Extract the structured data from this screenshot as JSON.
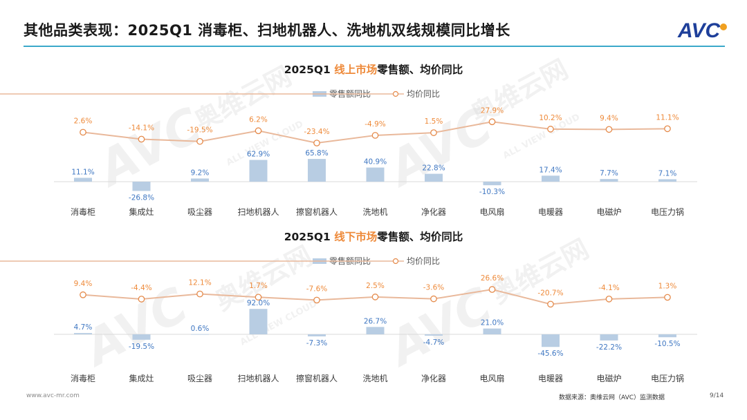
{
  "page": {
    "title": "其他品类表现：2025Q1 消毒柜、扫地机器人、洗地机双线规模同比增长",
    "logo_text": "AVC",
    "footer_url": "www.avc-mr.com",
    "source": "数据来源：奥维云网（AVC）监测数据",
    "page_number": "9/14",
    "watermark_cn": "奥维云网",
    "watermark_en": "ALL VIEW CLOUD",
    "watermark_logo": "AVC"
  },
  "colors": {
    "bar": "#b8cde3",
    "line": "#e9b89a",
    "marker_edge": "#e58a4a",
    "highlight": "#ee8a3a",
    "accent": "#3aa8c9"
  },
  "chart_data": [
    {
      "type": "bar",
      "title_prefix": "2025Q1 ",
      "title_highlight": "线上市场",
      "title_suffix": "零售额、均价同比",
      "legend": {
        "bar": "零售额同比",
        "line": "均价同比"
      },
      "categories": [
        "消毒柜",
        "集成灶",
        "吸尘器",
        "扫地机器人",
        "擦窗机器人",
        "洗地机",
        "净化器",
        "电风扇",
        "电暖器",
        "电磁炉",
        "电压力锅"
      ],
      "series": [
        {
          "name": "零售额同比",
          "kind": "bar",
          "values": [
            11.1,
            -26.8,
            9.2,
            62.9,
            65.8,
            40.9,
            22.8,
            -10.3,
            17.4,
            7.7,
            7.1
          ],
          "labels": [
            "11.1%",
            "-26.8%",
            "9.2%",
            "62.9%",
            "65.8%",
            "40.9%",
            "22.8%",
            "-10.3%",
            "17.4%",
            "7.7%",
            "7.1%"
          ]
        },
        {
          "name": "均价同比",
          "kind": "line",
          "values": [
            2.6,
            -14.1,
            -19.5,
            6.2,
            -23.4,
            -4.9,
            1.5,
            27.9,
            10.2,
            9.4,
            11.1
          ],
          "labels": [
            "2.6%",
            "-14.1%",
            "-19.5%",
            "6.2%",
            "-23.4%",
            "-4.9%",
            "1.5%",
            "27.9%",
            "10.2%",
            "9.4%",
            "11.1%"
          ]
        }
      ]
    },
    {
      "type": "bar",
      "title_prefix": "2025Q1 ",
      "title_highlight": "线下市场",
      "title_suffix": "零售额、均价同比",
      "legend": {
        "bar": "零售额同比",
        "line": "均价同比"
      },
      "categories": [
        "消毒柜",
        "集成灶",
        "吸尘器",
        "扫地机器人",
        "擦窗机器人",
        "洗地机",
        "净化器",
        "电风扇",
        "电暖器",
        "电磁炉",
        "电压力锅"
      ],
      "series": [
        {
          "name": "零售额同比",
          "kind": "bar",
          "values": [
            4.7,
            -19.5,
            0.6,
            92.0,
            -7.3,
            26.7,
            -4.7,
            21.0,
            -45.6,
            -22.2,
            -10.5
          ],
          "labels": [
            "4.7%",
            "-19.5%",
            "0.6%",
            "92.0%",
            "-7.3%",
            "26.7%",
            "-4.7%",
            "21.0%",
            "-45.6%",
            "-22.2%",
            "-10.5%"
          ]
        },
        {
          "name": "均价同比",
          "kind": "line",
          "values": [
            9.4,
            -4.4,
            12.1,
            1.7,
            -7.6,
            2.5,
            -3.6,
            26.6,
            -20.7,
            -4.1,
            1.3
          ],
          "labels": [
            "9.4%",
            "-4.4%",
            "12.1%",
            "1.7%",
            "-7.6%",
            "2.5%",
            "-3.6%",
            "26.6%",
            "-20.7%",
            "-4.1%",
            "1.3%"
          ]
        }
      ]
    }
  ]
}
